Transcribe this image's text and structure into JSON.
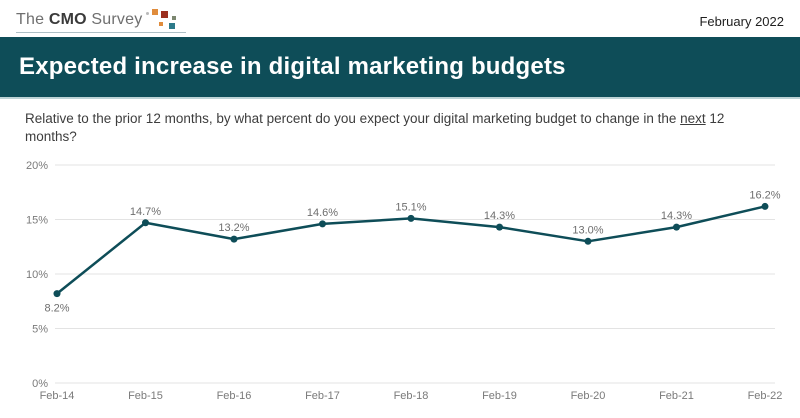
{
  "header": {
    "logo": {
      "the": "The ",
      "cmo": "CMO",
      "survey": " Survey"
    },
    "date": "February 2022"
  },
  "banner": {
    "title": "Expected increase in digital marketing budgets"
  },
  "question": {
    "part1": "Relative to the prior 12 months, by what percent do you expect your digital marketing budget to change in the ",
    "underlined": "next",
    "part2": " 12 months?"
  },
  "colors": {
    "banner_teal": "#0e4d58",
    "line_teal": "#0e4d58",
    "grid_gray": "#e3e3e3",
    "axis_label_gray": "#7a7a7a",
    "data_label_gray": "#6e6e6e",
    "logo_orange": "#e08c3c",
    "logo_maroon": "#9c2f1f",
    "logo_teal": "#2d7a8a"
  },
  "chart_data": {
    "type": "line",
    "title": "Expected increase in digital marketing budgets",
    "xlabel": "",
    "ylabel": "",
    "categories": [
      "Feb-14",
      "Feb-15",
      "Feb-16",
      "Feb-17",
      "Feb-18",
      "Feb-19",
      "Feb-20",
      "Feb-21",
      "Feb-22"
    ],
    "values": [
      8.2,
      14.7,
      13.2,
      14.6,
      15.1,
      14.3,
      13.0,
      14.3,
      16.2
    ],
    "point_labels": [
      "8.2%",
      "14.7%",
      "13.2%",
      "14.6%",
      "15.1%",
      "14.3%",
      "13.0%",
      "14.3%",
      "16.2%"
    ],
    "y_ticks": [
      20,
      15,
      10,
      5,
      0
    ],
    "y_tick_labels": [
      "20%",
      "15%",
      "10%",
      "5%",
      "0%"
    ],
    "ylim": [
      0,
      20
    ],
    "grid": true,
    "legend": false,
    "first_label_below": true
  }
}
